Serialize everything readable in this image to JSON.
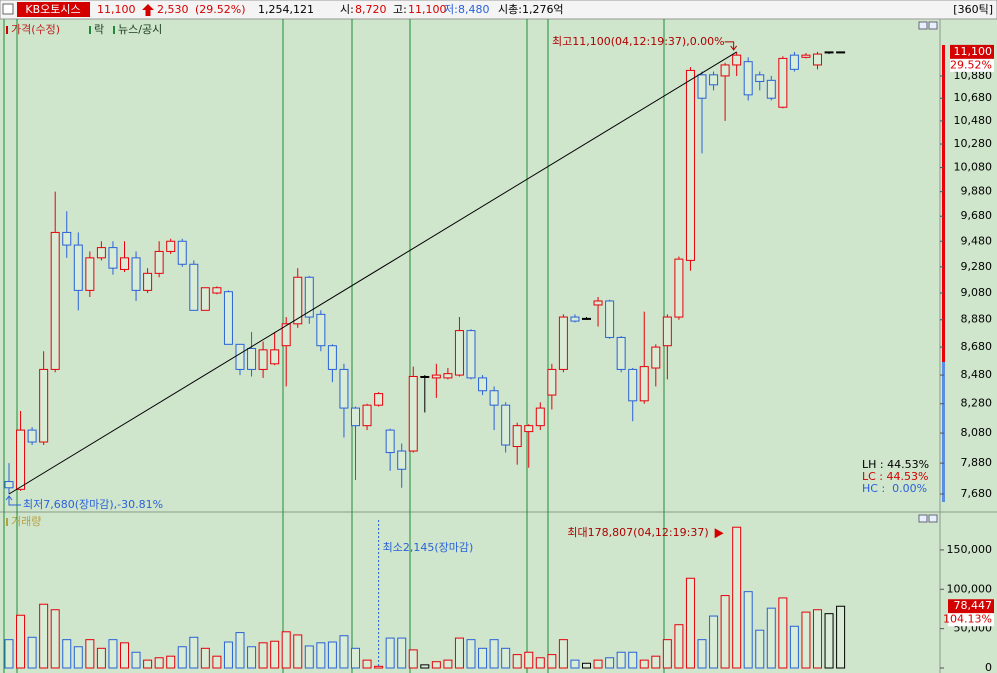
{
  "header": {
    "stock_name": "KB오토시스",
    "price": "11,100",
    "change": "2,530",
    "change_rate": "(29.52%)",
    "volume": "1,254,121",
    "open_label": "시:",
    "open": "8,720",
    "high_label": "고:",
    "high": "11,100",
    "low_label": "저:",
    "low": "8,480",
    "market_cap": "시총:1,276억",
    "period": "[360틱]"
  },
  "chart_data": [
    {
      "type": "candlestick",
      "legend": [
        "가격(수정)",
        "락",
        "뉴스/공시"
      ],
      "open": [
        7760,
        7710,
        8100,
        8020,
        8520,
        9550,
        9450,
        9100,
        9350,
        9430,
        9260,
        9350,
        9100,
        9230,
        9400,
        9480,
        9300,
        8950,
        9080,
        9090,
        8700,
        8670,
        8520,
        8560,
        8690,
        8850,
        9200,
        8920,
        8690,
        8520,
        8250,
        8130,
        8270,
        8100,
        7960,
        7960,
        8470,
        8460,
        8460,
        8480,
        8800,
        8460,
        8370,
        8270,
        7990,
        8090,
        8130,
        8340,
        8520,
        8900,
        8890,
        8990,
        9020,
        8750,
        8520,
        8300,
        8530,
        8690,
        8900,
        9330,
        10890,
        10890,
        10880,
        10980,
        11010,
        10890,
        10840,
        10600,
        11070,
        11050,
        10980,
        11100,
        11100
      ],
      "high": [
        7880,
        8230,
        8120,
        8650,
        9880,
        9720,
        9550,
        9400,
        9480,
        9480,
        9480,
        9400,
        9270,
        9480,
        9500,
        9500,
        9330,
        9120,
        9130,
        9100,
        8700,
        8790,
        8720,
        8790,
        8900,
        9270,
        9210,
        8950,
        8700,
        8560,
        8260,
        8280,
        8360,
        8110,
        8010,
        8540,
        8480,
        8560,
        8530,
        8900,
        8810,
        8480,
        8400,
        8290,
        8150,
        8140,
        8290,
        8560,
        8920,
        8920,
        8900,
        9050,
        9030,
        8760,
        8530,
        8940,
        8700,
        8920,
        9360,
        10960,
        10920,
        10920,
        11000,
        11100,
        11050,
        10920,
        10880,
        11060,
        11100,
        11090,
        11100,
        11100,
        11100
      ],
      "low": [
        7680,
        7700,
        8000,
        8000,
        8500,
        9350,
        8950,
        9050,
        9330,
        9220,
        9240,
        9020,
        9080,
        9200,
        9380,
        9280,
        8950,
        8950,
        9070,
        8700,
        8480,
        8470,
        8460,
        8550,
        8400,
        8820,
        8850,
        8650,
        8430,
        8050,
        7770,
        8100,
        8260,
        7830,
        7720,
        7950,
        8220,
        8320,
        8450,
        8470,
        8450,
        8340,
        8100,
        7950,
        7870,
        7850,
        8100,
        8240,
        8500,
        8860,
        8880,
        8830,
        8740,
        8500,
        8160,
        8280,
        8400,
        8450,
        8880,
        9250,
        10200,
        10750,
        10480,
        10880,
        10660,
        10750,
        10660,
        10590,
        10920,
        11040,
        10940,
        11080,
        11100
      ],
      "close": [
        7720,
        8100,
        8020,
        8520,
        9550,
        9450,
        9100,
        9350,
        9430,
        9270,
        9350,
        9100,
        9230,
        9400,
        9480,
        9300,
        8950,
        9120,
        9120,
        8700,
        8520,
        8520,
        8660,
        8660,
        8850,
        9200,
        8900,
        8690,
        8520,
        8250,
        8130,
        8270,
        8350,
        7950,
        7840,
        8470,
        8470,
        8480,
        8490,
        8800,
        8460,
        8370,
        8270,
        8000,
        8130,
        8130,
        8250,
        8520,
        8900,
        8870,
        8890,
        9020,
        8750,
        8520,
        8300,
        8540,
        8680,
        8900,
        9340,
        10930,
        10680,
        10800,
        10980,
        11070,
        10710,
        10830,
        10680,
        11040,
        10940,
        11070,
        11080,
        11100,
        11100
      ],
      "up_color": "#e8000b",
      "down_color": "#2a62d8",
      "flat_color": "#000000",
      "log_scale": true,
      "ylim": [
        7610,
        11380
      ],
      "yticks": [
        {
          "value": 10880,
          "label": "10,880"
        },
        {
          "value": 10680,
          "label": "10,680"
        },
        {
          "value": 10480,
          "label": "10,480"
        },
        {
          "value": 10280,
          "label": "10,280"
        },
        {
          "value": 10080,
          "label": "10,080"
        },
        {
          "value": 9880,
          "label": "9,880"
        },
        {
          "value": 9680,
          "label": "9,680"
        },
        {
          "value": 9480,
          "label": "9,480"
        },
        {
          "value": 9280,
          "label": "9,280"
        },
        {
          "value": 9080,
          "label": "9,080"
        },
        {
          "value": 8880,
          "label": "8,880"
        },
        {
          "value": 8680,
          "label": "8,680"
        },
        {
          "value": 8480,
          "label": "8,480"
        },
        {
          "value": 8280,
          "label": "8,280"
        },
        {
          "value": 8080,
          "label": "8,080"
        },
        {
          "value": 7880,
          "label": "7,880"
        },
        {
          "value": 7680,
          "label": "7,680"
        }
      ],
      "max_label": "최고11,100(04,12:19:37),0.00%",
      "min_label": "최저7,680(장마감),-30.81%",
      "price_tag": {
        "value": 11100,
        "label": "11,100",
        "change": "29.52%"
      },
      "stats": [
        "LH : 44.53%",
        "LC : 44.53%",
        "HC :  0.00%"
      ]
    },
    {
      "type": "bar",
      "title": "거래량",
      "values": [
        36000,
        67000,
        39000,
        81000,
        74000,
        36000,
        27000,
        36000,
        25000,
        36000,
        32000,
        20000,
        10000,
        13000,
        15000,
        27000,
        39000,
        25000,
        15000,
        33000,
        45000,
        27000,
        32000,
        34000,
        46000,
        42000,
        28000,
        32000,
        33000,
        41000,
        25000,
        10000,
        2145,
        38000,
        38000,
        23000,
        4000,
        8000,
        10000,
        38000,
        36000,
        25000,
        36000,
        25000,
        17000,
        20000,
        13000,
        17000,
        36000,
        10000,
        6000,
        10000,
        13000,
        20000,
        20000,
        10000,
        15000,
        36000,
        55000,
        114000,
        36000,
        66000,
        92000,
        178807,
        97000,
        48000,
        76000,
        89000,
        53000,
        71000,
        74000,
        69000,
        78447
      ],
      "ylim": [
        0,
        188000
      ],
      "yticks": [
        0,
        {
          "value": 50000,
          "label": "50,000"
        },
        {
          "value": 100000,
          "label": "100,000"
        },
        {
          "value": 150000,
          "label": "150,000"
        }
      ],
      "max_label": "최대178,807(04,12:19:37)",
      "min_label": "최소2,145(장마감)",
      "volume_tag": {
        "value": 78447,
        "label": "78,447",
        "change": "104.13%"
      }
    }
  ]
}
